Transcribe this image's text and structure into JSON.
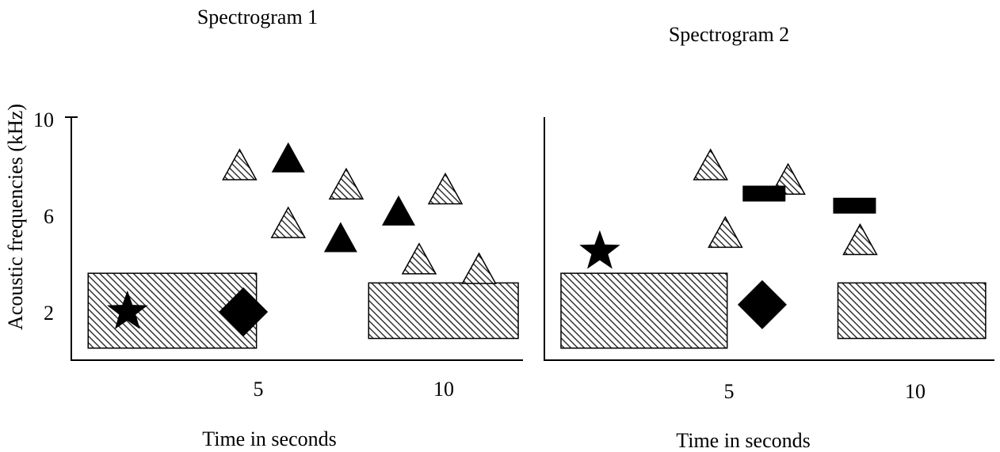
{
  "panels": [
    {
      "title": "Spectrogram 1",
      "xlabel": "Time in seconds",
      "ylabel": "Acoustic frequencies (kHz)",
      "x_ticks": [
        "5",
        "10"
      ],
      "y_ticks": [
        "10",
        "6",
        "2"
      ],
      "x_range": [
        0,
        12
      ],
      "y_range": [
        0,
        10
      ],
      "shapes": [
        {
          "kind": "hatched-rect",
          "x0": 0.45,
          "x1": 4.95,
          "y0": 0.5,
          "y1": 3.6
        },
        {
          "kind": "hatched-rect",
          "x0": 7.95,
          "x1": 11.95,
          "y0": 0.9,
          "y1": 3.2
        },
        {
          "kind": "star",
          "x": 1.5,
          "y": 2.0
        },
        {
          "kind": "diamond",
          "x": 4.6,
          "y": 2.0
        },
        {
          "kind": "hatched-triangle",
          "x": 4.5,
          "y": 8.1
        },
        {
          "kind": "hatched-triangle",
          "x": 5.8,
          "y": 5.7
        },
        {
          "kind": "hatched-triangle",
          "x": 7.35,
          "y": 7.3
        },
        {
          "kind": "hatched-triangle",
          "x": 9.3,
          "y": 4.2
        },
        {
          "kind": "hatched-triangle",
          "x": 10.0,
          "y": 7.1
        },
        {
          "kind": "hatched-triangle",
          "x": 10.9,
          "y": 3.8
        },
        {
          "kind": "solid-triangle",
          "x": 5.8,
          "y": 8.4
        },
        {
          "kind": "solid-triangle",
          "x": 7.2,
          "y": 5.1
        },
        {
          "kind": "solid-triangle",
          "x": 8.75,
          "y": 6.2
        }
      ]
    },
    {
      "title": "Spectrogram 2",
      "xlabel": "Time in seconds",
      "ylabel": "",
      "x_ticks": [
        "5",
        "10"
      ],
      "y_ticks": [],
      "x_range": [
        0,
        12
      ],
      "y_range": [
        0,
        10
      ],
      "shapes": [
        {
          "kind": "hatched-rect",
          "x0": 0.45,
          "x1": 4.95,
          "y0": 0.5,
          "y1": 3.6
        },
        {
          "kind": "hatched-rect",
          "x0": 7.95,
          "x1": 11.95,
          "y0": 0.9,
          "y1": 3.2
        },
        {
          "kind": "star",
          "x": 1.5,
          "y": 4.5
        },
        {
          "kind": "diamond",
          "x": 5.9,
          "y": 2.3
        },
        {
          "kind": "hatched-triangle",
          "x": 4.5,
          "y": 8.1
        },
        {
          "kind": "hatched-triangle",
          "x": 4.9,
          "y": 5.3
        },
        {
          "kind": "hatched-triangle",
          "x": 6.6,
          "y": 7.5
        },
        {
          "kind": "hatched-triangle",
          "x": 8.55,
          "y": 5.0
        },
        {
          "kind": "solid-bar",
          "x": 5.95,
          "y": 6.9
        },
        {
          "kind": "solid-bar",
          "x": 8.4,
          "y": 6.4
        }
      ]
    }
  ]
}
